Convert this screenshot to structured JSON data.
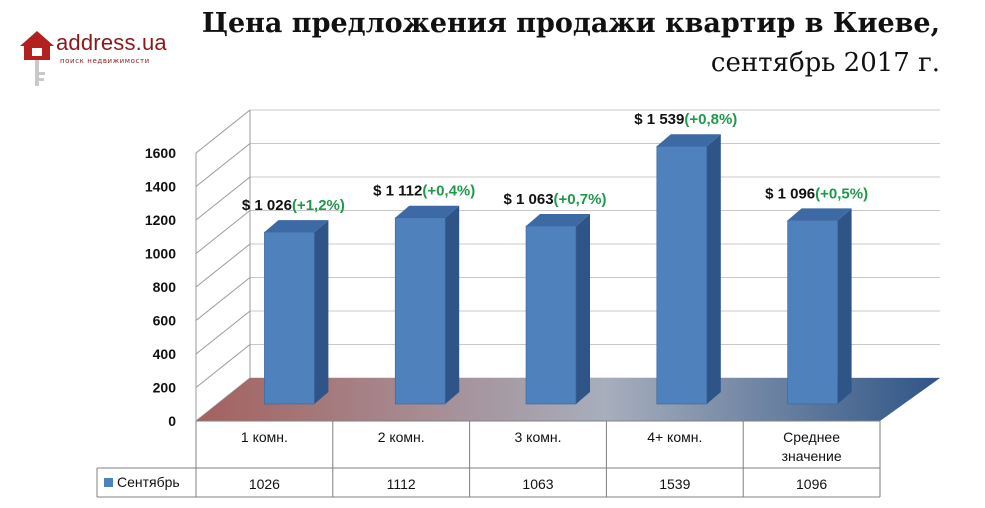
{
  "logo": {
    "name": "address.ua",
    "tagline": "поиск недвижимости",
    "icon": "house-key-icon",
    "color": "#8a1a1a"
  },
  "title": {
    "line1": "Цена предложения продажи квартир в Киеве,",
    "line2": "сентябрь 2017 г."
  },
  "colors": {
    "bar_front": "#4f81bd",
    "bar_side": "#2f5588",
    "bar_top": "#3d6aa4",
    "change_text": "#1f9a4a",
    "floor_left": "#a4615f",
    "floor_right": "#2f5587"
  },
  "chart_data": {
    "type": "bar",
    "style": "3d-column",
    "categories": [
      "1 комн.",
      "2 комн.",
      "3 комн.",
      "4+ комн.",
      "Среднее значение"
    ],
    "series": [
      {
        "name": "Сентябрь",
        "values": [
          1026,
          1112,
          1063,
          1539,
          1096
        ]
      }
    ],
    "data_labels": [
      {
        "value": "$ 1 026",
        "change": "(+1,2%)"
      },
      {
        "value": "$ 1 112",
        "change": "(+0,4%)"
      },
      {
        "value": "$  1 063",
        "change": "(+0,7%)"
      },
      {
        "value": "$ 1 539",
        "change": "(+0,8%)"
      },
      {
        "value": "$ 1 096",
        "change": "(+0,5%)"
      }
    ],
    "y_ticks": [
      "0",
      "200",
      "400",
      "600",
      "800",
      "1000",
      "1200",
      "1400",
      "1600"
    ],
    "ylim": [
      0,
      1600
    ],
    "grid": true,
    "legend": "data-table-left",
    "data_table": {
      "series_label": "Сентябрь",
      "values": [
        "1026",
        "1112",
        "1063",
        "1539",
        "1096"
      ]
    }
  }
}
